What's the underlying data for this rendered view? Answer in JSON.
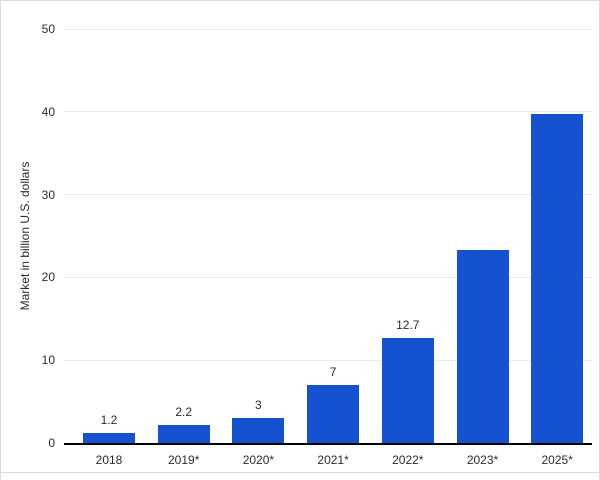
{
  "chart": {
    "style": {
      "bar_color": "#1552d0",
      "grid_color": "#ebebeb",
      "axis_color": "#000000",
      "text_color": "#2b2b2b",
      "border_color": "#dcdcdc",
      "divider_color": "#d6d6d6",
      "background": "#ffffff"
    }
  },
  "chart_data": {
    "type": "bar",
    "title": "",
    "categories": [
      "2018",
      "2019*",
      "2020*",
      "2021*",
      "2022*",
      "2023*",
      "2025*"
    ],
    "values": [
      1.2,
      2.2,
      3,
      7,
      12.7,
      23.3,
      39.7
    ],
    "data_labels": [
      "1.2",
      "2.2",
      "3",
      "7",
      "12.7",
      "",
      ""
    ],
    "xlabel": "",
    "ylabel": "Market in billion U.S. dollars",
    "ylim": [
      0,
      50
    ],
    "y_ticks": [
      0,
      10,
      20,
      30,
      40,
      50
    ],
    "grid": true,
    "legend": false
  }
}
